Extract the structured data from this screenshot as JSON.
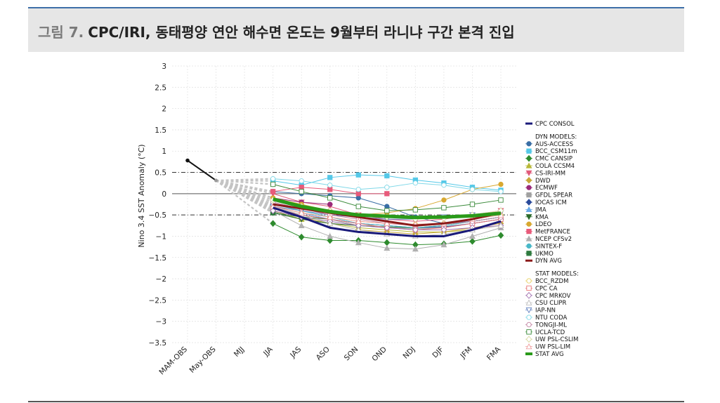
{
  "header": {
    "figure_label": "그림 7.",
    "title": "CPC/IRI, 동태평양 연안 해수면 온도는 9월부터 라니냐 구간 본격 진입"
  },
  "chart_data": {
    "type": "line",
    "ylabel": "Nino 3.4 SST Anomaly (°C)",
    "categories": [
      "MAM-OBS",
      "May-OBS",
      "MJJ",
      "JJA",
      "JAS",
      "ASO",
      "SON",
      "OND",
      "NDJ",
      "DJF",
      "JFM",
      "FMA"
    ],
    "ylim": [
      -3.5,
      3
    ],
    "yticks": [
      "3",
      "2.5",
      "2",
      "1.5",
      "1",
      "0.5",
      "0",
      "−0.5",
      "−1",
      "−1.5",
      "−2",
      "−2.5",
      "−3",
      "−3.5"
    ],
    "ytick_values": [
      3,
      2.5,
      2,
      1.5,
      1,
      0.5,
      0,
      -0.5,
      -1,
      -1.5,
      -2,
      -2.5,
      -3,
      -3.5
    ],
    "reference_lines": [
      0.5,
      -0.5
    ],
    "observed": {
      "x": [
        "MAM-OBS",
        "May-OBS"
      ],
      "values": [
        0.78,
        0.31
      ]
    },
    "legend_groups": {
      "consol": "",
      "dyn": "DYN MODELS:",
      "stat": "STAT MODELS:"
    },
    "series": [
      {
        "name": "CPC CONSOL",
        "group": "consol",
        "color": "#1a1a7a",
        "marker": "none",
        "width": 3,
        "values": [
          null,
          0.31,
          null,
          -0.33,
          -0.55,
          -0.8,
          -0.9,
          -0.95,
          -1.0,
          -1.0,
          -0.85,
          -0.65
        ]
      },
      {
        "name": "AUS-ACCESS",
        "group": "dyn",
        "color": "#3a6ea5",
        "marker": "circle",
        "width": 1,
        "values": [
          null,
          0.31,
          null,
          0.05,
          0.0,
          -0.05,
          -0.1,
          -0.3,
          -0.55,
          -0.7,
          -0.65,
          -0.55
        ]
      },
      {
        "name": "BCC_CSM11m",
        "group": "dyn",
        "color": "#55c8e8",
        "marker": "square",
        "width": 1,
        "values": [
          null,
          0.31,
          null,
          0.3,
          0.2,
          0.38,
          0.44,
          0.42,
          0.32,
          0.25,
          0.15,
          0.08
        ]
      },
      {
        "name": "CMC CANSIP",
        "group": "dyn",
        "color": "#2e8b2e",
        "marker": "diamond",
        "width": 1,
        "values": [
          null,
          0.31,
          null,
          -0.7,
          -1.02,
          -1.1,
          -1.1,
          -1.15,
          -1.2,
          -1.18,
          -1.12,
          -0.98
        ]
      },
      {
        "name": "COLA CCSM4",
        "group": "dyn",
        "color": "#b8b838",
        "marker": "triangle",
        "width": 1,
        "values": [
          null,
          0.31,
          null,
          -0.4,
          -0.6,
          -0.7,
          -0.8,
          -0.85,
          -0.9,
          -0.9,
          -0.85,
          -0.75
        ]
      },
      {
        "name": "CS-IRI-MM",
        "group": "dyn",
        "color": "#e05a7a",
        "marker": "tridown",
        "width": 1,
        "values": [
          null,
          0.31,
          null,
          0.0,
          -0.2,
          -0.3,
          -0.5,
          -0.6,
          -0.65,
          -0.6,
          -0.5,
          -0.4
        ]
      },
      {
        "name": "DWD",
        "group": "dyn",
        "color": "#c8a838",
        "marker": "diamond",
        "width": 1,
        "values": [
          null,
          0.31,
          null,
          -0.35,
          -0.55,
          -0.7,
          -0.85,
          -0.9,
          -0.95,
          -0.9,
          -0.8,
          -0.7
        ]
      },
      {
        "name": "ECMWF",
        "group": "dyn",
        "color": "#9a2a7a",
        "marker": "circle",
        "width": 1,
        "values": [
          null,
          0.31,
          null,
          -0.1,
          -0.2,
          -0.25,
          null,
          null,
          null,
          null,
          null,
          null
        ]
      },
      {
        "name": "GFDL SPEAR",
        "group": "dyn",
        "color": "#a0a0a0",
        "marker": "square",
        "width": 1,
        "values": [
          null,
          0.31,
          null,
          -0.3,
          -0.5,
          -0.6,
          -0.75,
          -0.8,
          -0.82,
          -0.8,
          -0.7,
          -0.6
        ]
      },
      {
        "name": "IOCAS ICM",
        "group": "dyn",
        "color": "#2a4a9a",
        "marker": "diamond",
        "width": 1,
        "values": [
          null,
          0.31,
          null,
          -0.35,
          -0.5,
          -0.6,
          -0.7,
          -0.75,
          -0.8,
          -0.78,
          -0.7,
          -0.6
        ]
      },
      {
        "name": "JMA",
        "group": "dyn",
        "color": "#6aaae8",
        "marker": "triangle",
        "width": 1,
        "values": [
          null,
          0.31,
          null,
          -0.3,
          -0.45,
          -0.6,
          -0.7,
          null,
          null,
          null,
          null,
          null
        ]
      },
      {
        "name": "KMA",
        "group": "dyn",
        "color": "#2a6a2a",
        "marker": "tridown",
        "width": 1,
        "values": [
          null,
          0.31,
          null,
          -0.45,
          -0.6,
          -0.7,
          -0.75,
          -0.78,
          -0.8,
          -0.75,
          -0.65,
          -0.55
        ]
      },
      {
        "name": "LDEO",
        "group": "dyn",
        "color": "#d8a830",
        "marker": "circle",
        "width": 1,
        "values": [
          null,
          0.31,
          null,
          -0.1,
          -0.25,
          -0.4,
          -0.5,
          -0.45,
          -0.35,
          -0.15,
          0.1,
          0.22
        ]
      },
      {
        "name": "MetFRANCE",
        "group": "dyn",
        "color": "#e85a7a",
        "marker": "square",
        "width": 1,
        "values": [
          null,
          0.31,
          null,
          0.05,
          0.15,
          0.1,
          0.0,
          0.0,
          null,
          null,
          null,
          null
        ]
      },
      {
        "name": "NCEP CFSv2",
        "group": "dyn",
        "color": "#b0b0b0",
        "marker": "triangle",
        "width": 1,
        "values": [
          null,
          0.31,
          null,
          -0.4,
          -0.75,
          -1.0,
          -1.15,
          -1.28,
          -1.3,
          -1.2,
          -1.0,
          -0.8
        ]
      },
      {
        "name": "SINTEX-F",
        "group": "dyn",
        "color": "#48b8c8",
        "marker": "circle",
        "width": 1,
        "values": [
          null,
          0.31,
          null,
          -0.25,
          -0.4,
          -0.55,
          -0.7,
          -0.75,
          -0.8,
          -0.75,
          -0.65,
          -0.55
        ]
      },
      {
        "name": "UKMO",
        "group": "dyn",
        "color": "#2e7a3e",
        "marker": "square",
        "width": 1,
        "values": [
          null,
          0.31,
          null,
          -0.45,
          -0.55,
          -0.6,
          null,
          null,
          null,
          null,
          null,
          null
        ]
      },
      {
        "name": "DYN AVG",
        "group": "dyn",
        "color": "#8b1a1a",
        "marker": "none",
        "width": 3,
        "values": [
          null,
          0.31,
          null,
          -0.25,
          -0.35,
          -0.45,
          -0.55,
          -0.65,
          -0.75,
          -0.7,
          -0.6,
          -0.45
        ]
      },
      {
        "name": "BCC_RZDM",
        "group": "stat",
        "color": "#e8d060",
        "marker": "circle-open",
        "width": 1,
        "values": [
          null,
          0.31,
          null,
          -0.3,
          -0.45,
          -0.55,
          -0.65,
          -0.7,
          -0.72,
          -0.7,
          -0.6,
          -0.5
        ]
      },
      {
        "name": "CPC CA",
        "group": "stat",
        "color": "#e87878",
        "marker": "square-open",
        "width": 1,
        "values": [
          null,
          0.31,
          null,
          -0.35,
          -0.5,
          -0.6,
          -0.7,
          -0.8,
          -0.85,
          -0.8,
          -0.7,
          -0.6
        ]
      },
      {
        "name": "CPC MRKOV",
        "group": "stat",
        "color": "#a070b0",
        "marker": "diamond-open",
        "width": 1,
        "values": [
          null,
          0.31,
          null,
          -0.4,
          -0.55,
          -0.65,
          -0.75,
          -0.8,
          -0.85,
          -0.85,
          -0.8,
          -0.75
        ]
      },
      {
        "name": "CSU CLIPR",
        "group": "stat",
        "color": "#c0c0c0",
        "marker": "triangle-open",
        "width": 1,
        "values": [
          null,
          0.31,
          null,
          -0.3,
          -0.5,
          -0.7,
          -0.85,
          -0.95,
          -1.0,
          -0.95,
          -0.85,
          -0.75
        ]
      },
      {
        "name": "IAP-NN",
        "group": "stat",
        "color": "#6080c0",
        "marker": "tridown-open",
        "width": 1,
        "values": [
          null,
          0.31,
          null,
          -0.3,
          -0.4,
          -0.5,
          -0.55,
          -0.6,
          -0.6,
          -0.55,
          -0.5,
          -0.45
        ]
      },
      {
        "name": "NTU CODA",
        "group": "stat",
        "color": "#80d8e8",
        "marker": "circle-open",
        "width": 1,
        "values": [
          null,
          0.31,
          null,
          0.35,
          0.3,
          0.2,
          0.1,
          0.15,
          0.25,
          0.2,
          0.1,
          0.05
        ]
      },
      {
        "name": "TONGJI-ML",
        "group": "stat",
        "color": "#c080a0",
        "marker": "circle-open",
        "width": 1,
        "values": [
          null,
          0.31,
          null,
          -0.2,
          -0.35,
          -0.5,
          -0.6,
          -0.7,
          -0.75,
          -0.72,
          -0.65,
          -0.55
        ]
      },
      {
        "name": "UCLA-TCD",
        "group": "stat",
        "color": "#3a8a3a",
        "marker": "square-open",
        "width": 1,
        "values": [
          null,
          0.31,
          null,
          0.22,
          0.05,
          -0.1,
          -0.3,
          -0.4,
          -0.38,
          -0.33,
          -0.25,
          -0.15
        ]
      },
      {
        "name": "UW PSL-CSLIM",
        "group": "stat",
        "color": "#d8d8a0",
        "marker": "diamond-open",
        "width": 1,
        "values": [
          null,
          0.31,
          null,
          -0.15,
          -0.3,
          -0.4,
          -0.5,
          -0.55,
          -0.6,
          -0.58,
          -0.5,
          -0.4
        ]
      },
      {
        "name": "UW PSL-LIM",
        "group": "stat",
        "color": "#f0a0a0",
        "marker": "triangle-open",
        "width": 1,
        "values": [
          null,
          0.31,
          null,
          -0.3,
          -0.45,
          -0.55,
          -0.65,
          -0.7,
          -0.72,
          -0.7,
          -0.6,
          -0.5
        ]
      },
      {
        "name": "STAT AVG",
        "group": "stat",
        "color": "#2a9a1a",
        "marker": "none",
        "width": 5,
        "values": [
          null,
          0.31,
          null,
          -0.13,
          -0.3,
          -0.42,
          -0.5,
          -0.53,
          -0.56,
          -0.55,
          -0.52,
          -0.46
        ]
      }
    ]
  }
}
